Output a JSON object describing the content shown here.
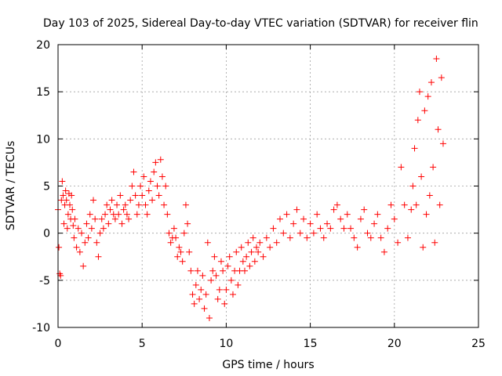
{
  "colors": {
    "series": "#ff0000",
    "axis": "#000000",
    "grid": "#a0a0a0"
  },
  "chart_data": {
    "type": "scatter",
    "marker": "plus",
    "title": "Day 103 of 2025, Sidereal Day-to-day VTEC variation (SDTVAR) for receiver flin",
    "xlabel": "GPS time / hours",
    "ylabel": "SDTVAR / TECUs",
    "xlim": [
      0,
      25
    ],
    "ylim": [
      -10,
      20
    ],
    "xticks": [
      "0",
      "5",
      "10",
      "15",
      "20",
      "25"
    ],
    "yticks": [
      "-10",
      "-5",
      "0",
      "5",
      "10",
      "15",
      "20"
    ],
    "grid": true,
    "series": [
      {
        "name": "SDTVAR",
        "points": [
          [
            0.0,
            2.5
          ],
          [
            0.05,
            -1.5
          ],
          [
            0.1,
            -4.3
          ],
          [
            0.15,
            -4.5
          ],
          [
            0.2,
            3.5
          ],
          [
            0.25,
            5.5
          ],
          [
            0.3,
            4.0
          ],
          [
            0.35,
            1.0
          ],
          [
            0.4,
            3.0
          ],
          [
            0.45,
            4.5
          ],
          [
            0.5,
            3.5
          ],
          [
            0.55,
            0.5
          ],
          [
            0.6,
            2.0
          ],
          [
            0.65,
            4.2
          ],
          [
            0.7,
            3.0
          ],
          [
            0.75,
            1.5
          ],
          [
            0.8,
            4.0
          ],
          [
            0.85,
            2.5
          ],
          [
            0.9,
            0.8
          ],
          [
            0.95,
            -0.5
          ],
          [
            1.0,
            1.5
          ],
          [
            1.1,
            -1.5
          ],
          [
            1.2,
            0.5
          ],
          [
            1.3,
            -2.0
          ],
          [
            1.4,
            0.0
          ],
          [
            1.5,
            -3.5
          ],
          [
            1.6,
            -1.0
          ],
          [
            1.7,
            1.0
          ],
          [
            1.8,
            -0.5
          ],
          [
            1.9,
            2.0
          ],
          [
            2.0,
            0.5
          ],
          [
            2.1,
            3.5
          ],
          [
            2.2,
            1.5
          ],
          [
            2.3,
            -1.0
          ],
          [
            2.4,
            -2.5
          ],
          [
            2.5,
            0.0
          ],
          [
            2.6,
            1.5
          ],
          [
            2.7,
            0.5
          ],
          [
            2.8,
            2.0
          ],
          [
            2.9,
            3.0
          ],
          [
            3.0,
            1.0
          ],
          [
            3.1,
            2.5
          ],
          [
            3.2,
            3.5
          ],
          [
            3.3,
            2.0
          ],
          [
            3.4,
            1.5
          ],
          [
            3.5,
            3.0
          ],
          [
            3.6,
            2.0
          ],
          [
            3.7,
            4.0
          ],
          [
            3.8,
            1.0
          ],
          [
            3.9,
            2.5
          ],
          [
            4.0,
            3.0
          ],
          [
            4.1,
            2.0
          ],
          [
            4.2,
            1.5
          ],
          [
            4.3,
            3.5
          ],
          [
            4.4,
            5.0
          ],
          [
            4.5,
            6.5
          ],
          [
            4.6,
            4.0
          ],
          [
            4.7,
            2.0
          ],
          [
            4.8,
            3.0
          ],
          [
            4.9,
            5.0
          ],
          [
            5.0,
            4.0
          ],
          [
            5.1,
            6.0
          ],
          [
            5.2,
            3.0
          ],
          [
            5.3,
            2.0
          ],
          [
            5.4,
            4.5
          ],
          [
            5.5,
            5.5
          ],
          [
            5.6,
            3.5
          ],
          [
            5.7,
            6.5
          ],
          [
            5.8,
            7.5
          ],
          [
            5.9,
            5.0
          ],
          [
            6.0,
            4.0
          ],
          [
            6.1,
            7.8
          ],
          [
            6.2,
            6.0
          ],
          [
            6.3,
            3.0
          ],
          [
            6.4,
            5.0
          ],
          [
            6.5,
            2.0
          ],
          [
            6.6,
            0.0
          ],
          [
            6.7,
            -1.0
          ],
          [
            6.8,
            -0.5
          ],
          [
            6.9,
            0.5
          ],
          [
            7.0,
            -0.5
          ],
          [
            7.1,
            -2.5
          ],
          [
            7.2,
            -1.5
          ],
          [
            7.3,
            -2.0
          ],
          [
            7.4,
            -3.0
          ],
          [
            7.5,
            0.0
          ],
          [
            7.6,
            3.0
          ],
          [
            7.7,
            1.0
          ],
          [
            7.8,
            -2.0
          ],
          [
            7.9,
            -4.0
          ],
          [
            8.0,
            -6.5
          ],
          [
            8.1,
            -7.5
          ],
          [
            8.2,
            -5.5
          ],
          [
            8.3,
            -4.0
          ],
          [
            8.4,
            -7.0
          ],
          [
            8.5,
            -6.0
          ],
          [
            8.6,
            -4.5
          ],
          [
            8.7,
            -8.0
          ],
          [
            8.8,
            -6.5
          ],
          [
            8.9,
            -1.0
          ],
          [
            9.0,
            -9.0
          ],
          [
            9.1,
            -5.0
          ],
          [
            9.2,
            -4.0
          ],
          [
            9.3,
            -2.5
          ],
          [
            9.4,
            -4.5
          ],
          [
            9.5,
            -7.0
          ],
          [
            9.6,
            -6.0
          ],
          [
            9.7,
            -3.0
          ],
          [
            9.8,
            -4.0
          ],
          [
            9.9,
            -7.5
          ],
          [
            10.0,
            -6.0
          ],
          [
            10.1,
            -3.5
          ],
          [
            10.2,
            -2.5
          ],
          [
            10.3,
            -5.0
          ],
          [
            10.4,
            -6.5
          ],
          [
            10.5,
            -4.0
          ],
          [
            10.6,
            -2.0
          ],
          [
            10.7,
            -5.5
          ],
          [
            10.8,
            -4.0
          ],
          [
            10.9,
            -1.5
          ],
          [
            11.0,
            -3.0
          ],
          [
            11.1,
            -4.0
          ],
          [
            11.2,
            -2.5
          ],
          [
            11.3,
            -1.0
          ],
          [
            11.4,
            -3.5
          ],
          [
            11.5,
            -2.0
          ],
          [
            11.6,
            -0.5
          ],
          [
            11.7,
            -3.0
          ],
          [
            11.8,
            -1.5
          ],
          [
            11.9,
            -2.0
          ],
          [
            12.0,
            -1.0
          ],
          [
            12.2,
            -2.5
          ],
          [
            12.4,
            -0.5
          ],
          [
            12.6,
            -1.5
          ],
          [
            12.8,
            0.5
          ],
          [
            13.0,
            -1.0
          ],
          [
            13.2,
            1.5
          ],
          [
            13.4,
            0.0
          ],
          [
            13.6,
            2.0
          ],
          [
            13.8,
            -0.5
          ],
          [
            14.0,
            1.0
          ],
          [
            14.2,
            2.5
          ],
          [
            14.4,
            0.0
          ],
          [
            14.6,
            1.5
          ],
          [
            14.8,
            -0.5
          ],
          [
            15.0,
            1.0
          ],
          [
            15.2,
            0.0
          ],
          [
            15.4,
            2.0
          ],
          [
            15.6,
            0.5
          ],
          [
            15.8,
            -0.5
          ],
          [
            16.0,
            1.0
          ],
          [
            16.2,
            0.5
          ],
          [
            16.4,
            2.5
          ],
          [
            16.6,
            3.0
          ],
          [
            16.8,
            1.5
          ],
          [
            17.0,
            0.5
          ],
          [
            17.2,
            2.0
          ],
          [
            17.4,
            0.5
          ],
          [
            17.6,
            -0.5
          ],
          [
            17.8,
            -1.5
          ],
          [
            18.0,
            1.5
          ],
          [
            18.2,
            2.5
          ],
          [
            18.4,
            0.0
          ],
          [
            18.6,
            -0.5
          ],
          [
            18.8,
            1.0
          ],
          [
            19.0,
            2.0
          ],
          [
            19.2,
            -0.5
          ],
          [
            19.4,
            -2.0
          ],
          [
            19.6,
            0.5
          ],
          [
            19.8,
            3.0
          ],
          [
            20.0,
            1.5
          ],
          [
            20.2,
            -1.0
          ],
          [
            20.4,
            7.0
          ],
          [
            20.6,
            3.0
          ],
          [
            20.8,
            -0.5
          ],
          [
            21.0,
            2.5
          ],
          [
            21.1,
            5.0
          ],
          [
            21.2,
            9.0
          ],
          [
            21.3,
            3.0
          ],
          [
            21.4,
            12.0
          ],
          [
            21.5,
            15.0
          ],
          [
            21.6,
            6.0
          ],
          [
            21.7,
            -1.5
          ],
          [
            21.8,
            13.0
          ],
          [
            21.9,
            2.0
          ],
          [
            22.0,
            14.5
          ],
          [
            22.1,
            4.0
          ],
          [
            22.2,
            16.0
          ],
          [
            22.3,
            7.0
          ],
          [
            22.4,
            -1.0
          ],
          [
            22.5,
            18.5
          ],
          [
            22.6,
            11.0
          ],
          [
            22.7,
            3.0
          ],
          [
            22.8,
            16.5
          ],
          [
            22.9,
            9.5
          ]
        ]
      }
    ]
  }
}
